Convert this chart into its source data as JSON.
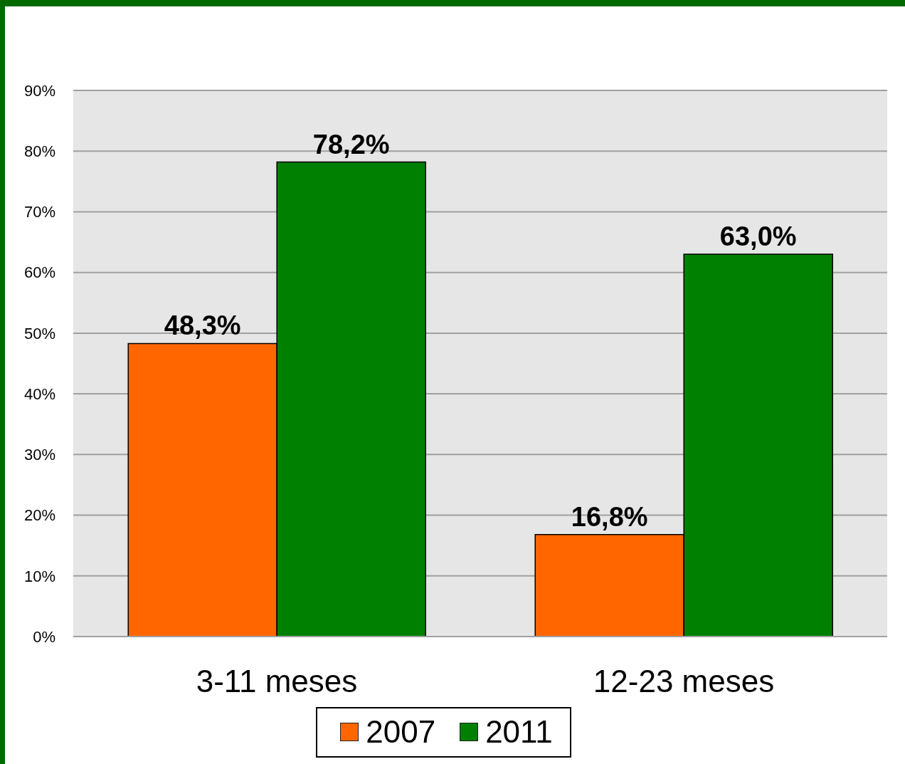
{
  "chart_data": {
    "type": "bar",
    "categories": [
      "3-11 meses",
      "12-23 meses"
    ],
    "series": [
      {
        "name": "2007",
        "color": "#ff6600",
        "values": [
          48.3,
          16.8
        ],
        "value_labels": [
          "48,3%",
          "16,8%"
        ]
      },
      {
        "name": "2011",
        "color": "#008000",
        "values": [
          78.2,
          63.0
        ],
        "value_labels": [
          "78,2%",
          "63,0%"
        ]
      }
    ],
    "ylim": [
      0,
      90
    ],
    "yticks": [
      {
        "value": 0,
        "label": "0%"
      },
      {
        "value": 10,
        "label": "10%"
      },
      {
        "value": 20,
        "label": "20%"
      },
      {
        "value": 30,
        "label": "30%"
      },
      {
        "value": 40,
        "label": "40%"
      },
      {
        "value": 50,
        "label": "50%"
      },
      {
        "value": 60,
        "label": "60%"
      },
      {
        "value": 70,
        "label": "70%"
      },
      {
        "value": 80,
        "label": "80%"
      },
      {
        "value": 90,
        "label": "90%"
      }
    ],
    "grid": "y",
    "legend": "bottom"
  }
}
